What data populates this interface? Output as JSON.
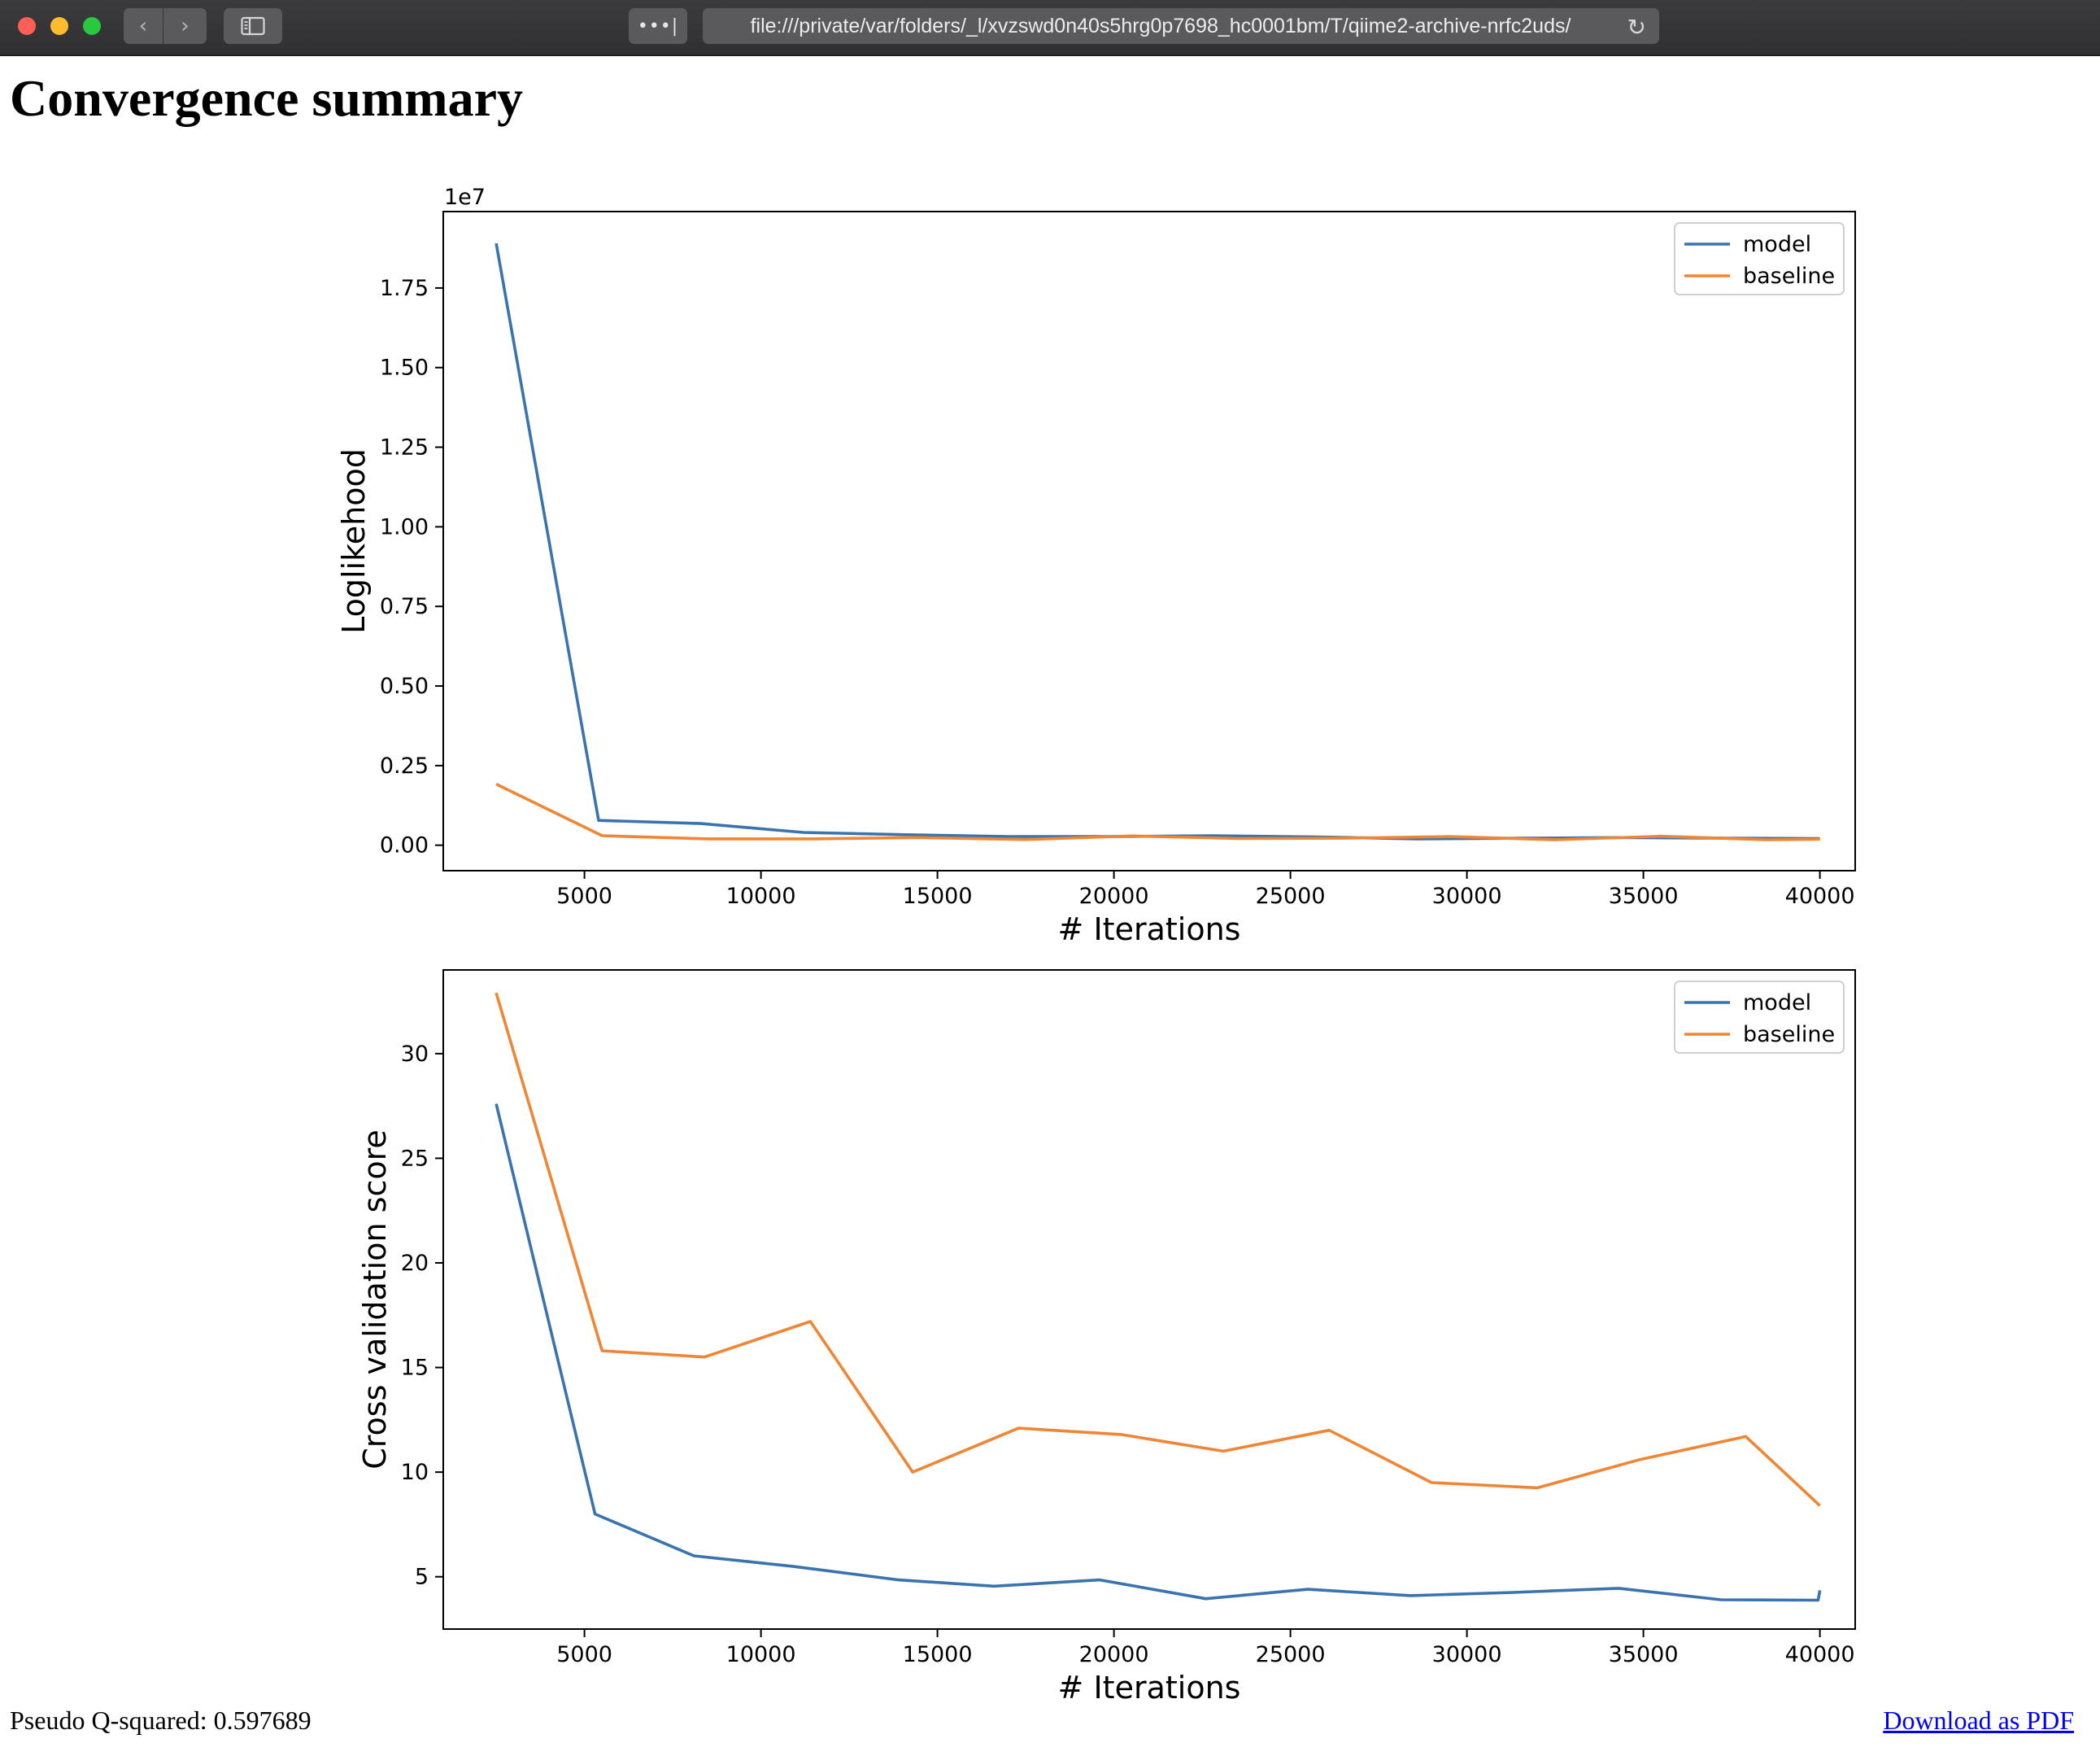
{
  "browser": {
    "url": "file:///private/var/folders/_l/xvzswd0n40s5hrg0p7698_hc0001bm/T/qiime2-archive-nrfc2uds/",
    "reader_label": "•••|",
    "back_icon": "chevron-left-icon",
    "forward_icon": "chevron-right-icon",
    "sidebar_icon": "sidebar-icon",
    "reload_icon": "reload-icon"
  },
  "page": {
    "title": "Convergence summary",
    "pseudo_q2": "Pseudo Q-squared: 0.597689",
    "download_label": "Download as PDF"
  },
  "chart_data": [
    {
      "type": "line",
      "xlabel": "# Iterations",
      "ylabel": "Loglikehood",
      "offset_label": "1e7",
      "xlim": [
        1000,
        41000
      ],
      "ylim": [
        -0.08,
        1.99
      ],
      "xticks": [
        5000,
        10000,
        15000,
        20000,
        25000,
        30000,
        35000,
        40000
      ],
      "xtick_labels": [
        "5000",
        "10000",
        "15000",
        "20000",
        "25000",
        "30000",
        "35000",
        "40000"
      ],
      "yticks": [
        0,
        0.25,
        0.5,
        0.75,
        1.0,
        1.25,
        1.5,
        1.75
      ],
      "ytick_labels": [
        "0.00",
        "0.25",
        "0.50",
        "0.75",
        "1.00",
        "1.25",
        "1.50",
        "1.75"
      ],
      "legend": "top-right",
      "series": [
        {
          "name": "model",
          "color": "#3a73ad",
          "x": [
            2500,
            5400,
            8300,
            11200,
            14100,
            17000,
            19900,
            22800,
            25700,
            28600,
            31500,
            34400,
            37300,
            40000
          ],
          "y": [
            1.89,
            0.078,
            0.068,
            0.04,
            0.033,
            0.027,
            0.027,
            0.03,
            0.026,
            0.02,
            0.022,
            0.024,
            0.022,
            0.021
          ]
        },
        {
          "name": "baseline",
          "color": "#ee8635",
          "x": [
            2500,
            5500,
            8500,
            11500,
            14500,
            17500,
            20500,
            23500,
            26500,
            29500,
            32500,
            35500,
            38500,
            40000
          ],
          "y": [
            0.192,
            0.03,
            0.02,
            0.02,
            0.024,
            0.018,
            0.029,
            0.021,
            0.022,
            0.027,
            0.017,
            0.028,
            0.017,
            0.019
          ]
        }
      ]
    },
    {
      "type": "line",
      "xlabel": "# Iterations",
      "ylabel": "Cross validation score",
      "xlim": [
        1000,
        41000
      ],
      "ylim": [
        2.5,
        34.0
      ],
      "xticks": [
        5000,
        10000,
        15000,
        20000,
        25000,
        30000,
        35000,
        40000
      ],
      "xtick_labels": [
        "5000",
        "10000",
        "15000",
        "20000",
        "25000",
        "30000",
        "35000",
        "40000"
      ],
      "yticks": [
        5,
        10,
        15,
        20,
        25,
        30
      ],
      "ytick_labels": [
        "5",
        "10",
        "15",
        "20",
        "25",
        "30"
      ],
      "legend": "top-right",
      "series": [
        {
          "name": "model",
          "color": "#3a73ad",
          "x": [
            2500,
            5300,
            8100,
            10900,
            13900,
            16600,
            19600,
            22600,
            25500,
            28400,
            31300,
            34300,
            37200,
            39950,
            40000
          ],
          "y": [
            27.6,
            8.0,
            6.0,
            5.5,
            4.85,
            4.55,
            4.85,
            3.95,
            4.4,
            4.1,
            4.25,
            4.45,
            3.9,
            3.88,
            4.35
          ]
        },
        {
          "name": "baseline",
          "color": "#ee8635",
          "x": [
            2500,
            5500,
            8400,
            11400,
            14300,
            17300,
            20200,
            23100,
            26100,
            29000,
            32000,
            34900,
            37900,
            40000
          ],
          "y": [
            32.9,
            15.8,
            15.5,
            17.2,
            10.0,
            12.1,
            11.8,
            11.0,
            12.0,
            9.5,
            9.25,
            10.6,
            11.7,
            8.4
          ]
        }
      ]
    }
  ]
}
